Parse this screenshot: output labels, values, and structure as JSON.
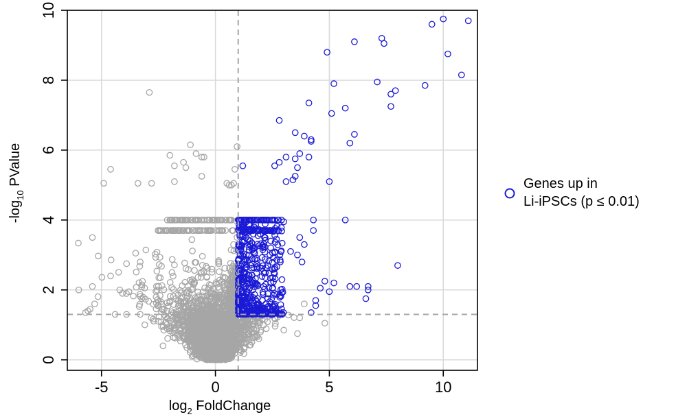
{
  "chart_data": {
    "type": "scatter",
    "title": "",
    "xlabel": {
      "main": "log",
      "sub": "2",
      "rest": " FoldChange"
    },
    "ylabel": {
      "main": "-log",
      "sub": "10",
      "rest": " PValue"
    },
    "xlim": [
      -6.5,
      11.5
    ],
    "ylim": [
      -0.3,
      10
    ],
    "x_ticks": [
      -5,
      0,
      5,
      10
    ],
    "x_tick_labels": [
      "-5",
      "0",
      "5",
      "10"
    ],
    "y_ticks": [
      0,
      2,
      4,
      6,
      8,
      10
    ],
    "y_tick_labels": [
      "0",
      "2",
      "4",
      "6",
      "8",
      "10"
    ],
    "grid": true,
    "threshold_lines": {
      "x": 1,
      "y": 1.3
    },
    "legend": {
      "position": "right",
      "entries": [
        {
          "line1": "Genes up in",
          "line2": "Li-iPSCs (p ≤ 0.01)",
          "color": "#1a1ad6"
        }
      ]
    },
    "colors": {
      "not_significant": "#a6a6a6",
      "up": "#1a1ad6",
      "grid": "#d9d9d9",
      "threshold": "#a6a6a6"
    },
    "series": [
      {
        "name": "Genes up in Li-iPSCs (p ≤ 0.01)",
        "color": "#1a1ad6",
        "points": [
          [
            11.1,
            9.7
          ],
          [
            10.0,
            9.75
          ],
          [
            9.5,
            9.6
          ],
          [
            7.3,
            9.2
          ],
          [
            7.4,
            9.05
          ],
          [
            6.1,
            9.1
          ],
          [
            4.9,
            8.8
          ],
          [
            10.2,
            8.75
          ],
          [
            10.8,
            8.15
          ],
          [
            7.9,
            7.7
          ],
          [
            7.7,
            7.6
          ],
          [
            7.1,
            7.95
          ],
          [
            9.2,
            7.85
          ],
          [
            5.2,
            7.9
          ],
          [
            7.7,
            7.25
          ],
          [
            4.1,
            7.35
          ],
          [
            5.7,
            7.2
          ],
          [
            5.1,
            7.05
          ],
          [
            2.8,
            6.85
          ],
          [
            3.5,
            6.5
          ],
          [
            6.1,
            6.45
          ],
          [
            3.9,
            6.4
          ],
          [
            4.2,
            6.3
          ],
          [
            4.2,
            6.25
          ],
          [
            5.9,
            6.2
          ],
          [
            3.7,
            5.9
          ],
          [
            3.1,
            5.8
          ],
          [
            4.1,
            5.8
          ],
          [
            3.5,
            5.75
          ],
          [
            2.8,
            5.65
          ],
          [
            2.6,
            5.55
          ],
          [
            1.2,
            5.55
          ],
          [
            3.6,
            5.5
          ],
          [
            3.5,
            5.25
          ],
          [
            3.4,
            5.15
          ],
          [
            3.1,
            5.1
          ],
          [
            5.0,
            5.1
          ],
          [
            5.7,
            4.0
          ],
          [
            8.0,
            2.7
          ],
          [
            6.7,
            2.1
          ],
          [
            6.2,
            2.1
          ],
          [
            5.9,
            2.1
          ],
          [
            6.7,
            2.0
          ],
          [
            6.6,
            1.75
          ],
          [
            5.2,
            2.2
          ],
          [
            4.8,
            2.25
          ],
          [
            5.0,
            1.95
          ],
          [
            4.4,
            1.7
          ],
          [
            4.4,
            1.55
          ],
          [
            4.2,
            1.35
          ],
          [
            4.6,
            2.05
          ],
          [
            4.3,
            4.0
          ],
          [
            4.3,
            3.7
          ],
          [
            3.9,
            3.3
          ],
          [
            3.7,
            3.5
          ],
          [
            3.8,
            2.8
          ],
          [
            3.6,
            3.0
          ],
          [
            3.3,
            3.1
          ],
          [
            2.9,
            4.0
          ],
          [
            2.5,
            4.0
          ]
        ],
        "dense_region": {
          "x_range": [
            1.0,
            3.0
          ],
          "y_range": [
            1.3,
            4.0
          ],
          "count": 420
        }
      },
      {
        "name": "",
        "color": "#a6a6a6",
        "points": [
          [
            -2.9,
            7.65
          ],
          [
            -1.1,
            6.15
          ],
          [
            0.95,
            6.1
          ],
          [
            -0.85,
            5.9
          ],
          [
            -2.0,
            5.85
          ],
          [
            -0.6,
            5.8
          ],
          [
            -0.5,
            5.8
          ],
          [
            -1.8,
            5.55
          ],
          [
            -1.3,
            5.5
          ],
          [
            -1.4,
            5.65
          ],
          [
            -4.6,
            5.45
          ],
          [
            0.85,
            5.45
          ],
          [
            -0.6,
            5.25
          ],
          [
            -4.9,
            5.05
          ],
          [
            -3.4,
            5.05
          ],
          [
            -2.8,
            5.05
          ],
          [
            -1.8,
            5.1
          ],
          [
            0.5,
            5.05
          ],
          [
            0.6,
            5.0
          ],
          [
            0.7,
            5.0
          ],
          [
            0.8,
            5.05
          ],
          [
            -5.4,
            3.5
          ],
          [
            -3.5,
            3.05
          ],
          [
            -3.9,
            2.75
          ],
          [
            -3.3,
            2.8
          ],
          [
            -4.6,
            2.4
          ],
          [
            -5.4,
            2.1
          ],
          [
            -6.0,
            2.0
          ],
          [
            -4.2,
            2.0
          ],
          [
            -3.8,
            1.95
          ],
          [
            -5.3,
            1.6
          ],
          [
            -5.5,
            1.45
          ],
          [
            -5.6,
            1.4
          ],
          [
            -5.7,
            1.35
          ],
          [
            -4.4,
            1.3
          ],
          [
            -3.9,
            1.3
          ],
          [
            -3.3,
            1.3
          ],
          [
            4.8,
            1.05
          ],
          [
            3.7,
            1.2
          ],
          [
            3.9,
            1.6
          ],
          [
            3.6,
            0.75
          ],
          [
            3.0,
            0.85
          ],
          [
            -2.3,
            0.4
          ],
          [
            -3.1,
            1.0
          ],
          [
            -2.0,
            4.0
          ],
          [
            -1.5,
            4.0
          ],
          [
            -1.0,
            4.0
          ],
          [
            -0.6,
            4.0
          ],
          [
            0.3,
            4.0
          ],
          [
            0.7,
            4.0
          ]
        ],
        "dense_region": {
          "x_range": [
            -3.0,
            3.0
          ],
          "y_range": [
            0.0,
            4.0
          ],
          "count": 2600
        }
      }
    ]
  }
}
